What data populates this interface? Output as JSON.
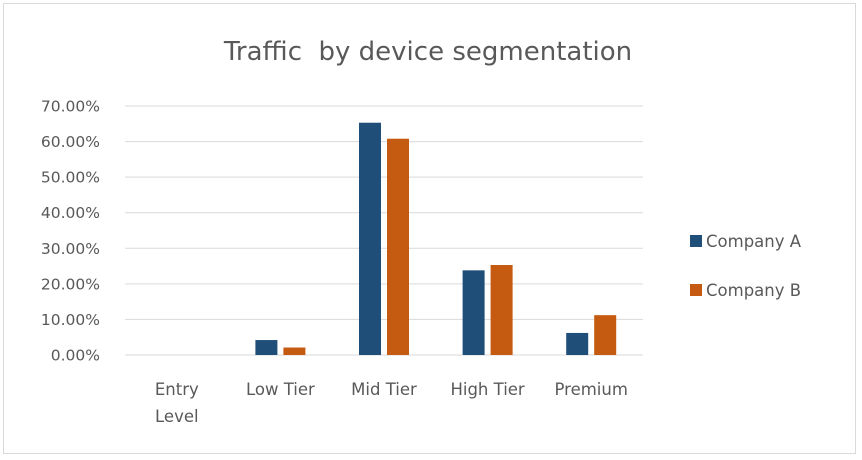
{
  "chart_data": {
    "type": "bar",
    "title": "Traffic  by device segmentation",
    "categories": [
      "Entry Level",
      "Low Tier",
      "Mid Tier",
      "High Tier",
      "Premium"
    ],
    "category_label_lines": [
      [
        "Entry",
        "Level"
      ],
      [
        "Low Tier"
      ],
      [
        "Mid Tier"
      ],
      [
        "High Tier"
      ],
      [
        "Premium"
      ]
    ],
    "series": [
      {
        "name": "Company A",
        "color": "#1f4e79",
        "values": [
          0,
          4.2,
          65.3,
          23.8,
          6.2
        ]
      },
      {
        "name": "Company B",
        "color": "#c55a11",
        "values": [
          0,
          2.1,
          60.8,
          25.3,
          11.2
        ]
      }
    ],
    "ylim": [
      0,
      70
    ],
    "yticks": [
      0,
      10,
      20,
      30,
      40,
      50,
      60,
      70
    ],
    "ytick_labels": [
      "0.00%",
      "10.00%",
      "20.00%",
      "30.00%",
      "40.00%",
      "50.00%",
      "60.00%",
      "70.00%"
    ],
    "xlabel": "",
    "ylabel": "",
    "grid": true,
    "gridline_color": "#d9d9d9",
    "legend_position": "right"
  }
}
